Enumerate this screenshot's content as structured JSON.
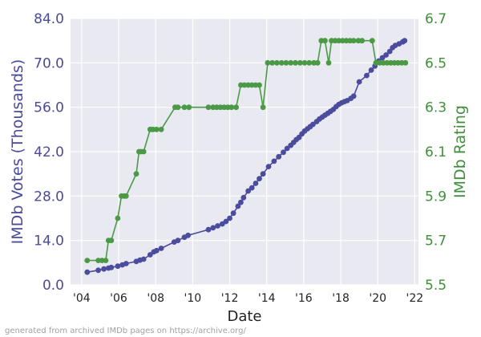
{
  "chart_data": {
    "type": "line",
    "xlabel": "Date",
    "ylabel_left": "IMDb Votes (Thousands)",
    "ylabel_right": "IMDb Rating",
    "x_ticks": [
      {
        "value": 2004,
        "label": "'04"
      },
      {
        "value": 2006,
        "label": "'06"
      },
      {
        "value": 2008,
        "label": "'08"
      },
      {
        "value": 2010,
        "label": "'10"
      },
      {
        "value": 2012,
        "label": "'12"
      },
      {
        "value": 2014,
        "label": "'14"
      },
      {
        "value": 2016,
        "label": "'16"
      },
      {
        "value": 2018,
        "label": "'18"
      },
      {
        "value": 2020,
        "label": "'20"
      },
      {
        "value": 2022,
        "label": "'22"
      }
    ],
    "xlim": [
      2003.4,
      2022.2
    ],
    "ylim_left": [
      0,
      84
    ],
    "ylim_right": [
      5.5,
      6.7
    ],
    "yticks_left": [
      "0.0",
      "14.0",
      "28.0",
      "42.0",
      "56.0",
      "70.0",
      "84.0"
    ],
    "yticks_right": [
      "5.5",
      "5.7",
      "5.9",
      "6.1",
      "6.3",
      "6.5",
      "6.7"
    ],
    "grid": true,
    "colors": {
      "votes": "#4c4c9e",
      "rating": "#4a9a45",
      "plot_bg": "#e9e9f1",
      "grid": "#ffffff",
      "left_text": "#4a4a9a",
      "right_text": "#3f8f3a"
    },
    "series": [
      {
        "axis": "left",
        "points": [
          [
            2004.3,
            4.0
          ],
          [
            2004.9,
            4.6
          ],
          [
            2005.2,
            5.0
          ],
          [
            2005.45,
            5.3
          ],
          [
            2005.6,
            5.5
          ],
          [
            2005.95,
            5.9
          ],
          [
            2006.2,
            6.3
          ],
          [
            2006.4,
            6.7
          ],
          [
            2006.95,
            7.4
          ],
          [
            2007.15,
            7.8
          ],
          [
            2007.35,
            8.1
          ],
          [
            2007.7,
            9.5
          ],
          [
            2007.9,
            10.4
          ],
          [
            2008.05,
            10.8
          ],
          [
            2008.3,
            11.5
          ],
          [
            2009.0,
            13.5
          ],
          [
            2009.2,
            14.0
          ],
          [
            2009.55,
            15.0
          ],
          [
            2009.75,
            15.6
          ],
          [
            2010.85,
            17.4
          ],
          [
            2011.1,
            18.0
          ],
          [
            2011.35,
            18.6
          ],
          [
            2011.6,
            19.2
          ],
          [
            2011.8,
            20.0
          ],
          [
            2012.0,
            21.0
          ],
          [
            2012.2,
            22.6
          ],
          [
            2012.45,
            24.8
          ],
          [
            2012.6,
            26.0
          ],
          [
            2012.75,
            27.5
          ],
          [
            2013.0,
            29.6
          ],
          [
            2013.2,
            30.6
          ],
          [
            2013.4,
            32.0
          ],
          [
            2013.6,
            33.5
          ],
          [
            2013.8,
            35.0
          ],
          [
            2014.1,
            37.3
          ],
          [
            2014.4,
            39.0
          ],
          [
            2014.65,
            40.4
          ],
          [
            2014.9,
            41.8
          ],
          [
            2015.1,
            43.0
          ],
          [
            2015.3,
            44.0
          ],
          [
            2015.45,
            44.9
          ],
          [
            2015.6,
            45.8
          ],
          [
            2015.75,
            46.5
          ],
          [
            2015.9,
            47.6
          ],
          [
            2016.05,
            48.5
          ],
          [
            2016.2,
            49.2
          ],
          [
            2016.35,
            49.9
          ],
          [
            2016.5,
            50.6
          ],
          [
            2016.7,
            51.5
          ],
          [
            2016.85,
            52.3
          ],
          [
            2017.0,
            52.9
          ],
          [
            2017.15,
            53.5
          ],
          [
            2017.3,
            54.1
          ],
          [
            2017.45,
            54.7
          ],
          [
            2017.6,
            55.3
          ],
          [
            2017.75,
            56.2
          ],
          [
            2017.9,
            56.9
          ],
          [
            2018.05,
            57.4
          ],
          [
            2018.2,
            57.8
          ],
          [
            2018.35,
            58.1
          ],
          [
            2018.55,
            58.8
          ],
          [
            2018.7,
            59.5
          ],
          [
            2019.0,
            64.0
          ],
          [
            2019.4,
            66.0
          ],
          [
            2019.65,
            67.7
          ],
          [
            2019.85,
            69.0
          ],
          [
            2020.05,
            70.6
          ],
          [
            2020.25,
            71.6
          ],
          [
            2020.45,
            72.5
          ],
          [
            2020.65,
            73.6
          ],
          [
            2020.8,
            74.8
          ],
          [
            2020.95,
            75.5
          ],
          [
            2021.15,
            76.0
          ],
          [
            2021.35,
            76.6
          ],
          [
            2021.45,
            77.0
          ]
        ]
      },
      {
        "axis": "right",
        "points": [
          [
            2004.3,
            5.61
          ],
          [
            2004.9,
            5.61
          ],
          [
            2005.1,
            5.61
          ],
          [
            2005.3,
            5.61
          ],
          [
            2005.45,
            5.7
          ],
          [
            2005.6,
            5.7
          ],
          [
            2005.95,
            5.8
          ],
          [
            2006.15,
            5.9
          ],
          [
            2006.3,
            5.9
          ],
          [
            2006.4,
            5.9
          ],
          [
            2006.95,
            6.0
          ],
          [
            2007.1,
            6.1
          ],
          [
            2007.2,
            6.1
          ],
          [
            2007.35,
            6.1
          ],
          [
            2007.7,
            6.2
          ],
          [
            2007.85,
            6.2
          ],
          [
            2008.05,
            6.2
          ],
          [
            2008.3,
            6.2
          ],
          [
            2009.05,
            6.3
          ],
          [
            2009.2,
            6.3
          ],
          [
            2009.55,
            6.3
          ],
          [
            2009.8,
            6.3
          ],
          [
            2010.85,
            6.3
          ],
          [
            2011.1,
            6.3
          ],
          [
            2011.3,
            6.3
          ],
          [
            2011.5,
            6.3
          ],
          [
            2011.7,
            6.3
          ],
          [
            2011.9,
            6.3
          ],
          [
            2012.1,
            6.3
          ],
          [
            2012.35,
            6.3
          ],
          [
            2012.6,
            6.4
          ],
          [
            2012.8,
            6.4
          ],
          [
            2013.0,
            6.4
          ],
          [
            2013.2,
            6.4
          ],
          [
            2013.4,
            6.4
          ],
          [
            2013.6,
            6.4
          ],
          [
            2013.8,
            6.3
          ],
          [
            2014.05,
            6.5
          ],
          [
            2014.3,
            6.5
          ],
          [
            2014.55,
            6.5
          ],
          [
            2014.8,
            6.5
          ],
          [
            2015.05,
            6.5
          ],
          [
            2015.3,
            6.5
          ],
          [
            2015.55,
            6.5
          ],
          [
            2015.8,
            6.5
          ],
          [
            2016.05,
            6.5
          ],
          [
            2016.3,
            6.5
          ],
          [
            2016.55,
            6.5
          ],
          [
            2016.75,
            6.5
          ],
          [
            2016.95,
            6.6
          ],
          [
            2017.15,
            6.6
          ],
          [
            2017.35,
            6.5
          ],
          [
            2017.5,
            6.6
          ],
          [
            2017.7,
            6.6
          ],
          [
            2017.9,
            6.6
          ],
          [
            2018.1,
            6.6
          ],
          [
            2018.3,
            6.6
          ],
          [
            2018.5,
            6.6
          ],
          [
            2018.7,
            6.6
          ],
          [
            2018.95,
            6.6
          ],
          [
            2019.15,
            6.6
          ],
          [
            2019.7,
            6.6
          ],
          [
            2019.9,
            6.5
          ],
          [
            2020.1,
            6.5
          ],
          [
            2020.3,
            6.5
          ],
          [
            2020.5,
            6.5
          ],
          [
            2020.7,
            6.5
          ],
          [
            2020.9,
            6.5
          ],
          [
            2021.1,
            6.5
          ],
          [
            2021.3,
            6.5
          ],
          [
            2021.5,
            6.5
          ]
        ]
      }
    ],
    "footnote": "generated from archived IMDb pages on https://archive.org/"
  }
}
